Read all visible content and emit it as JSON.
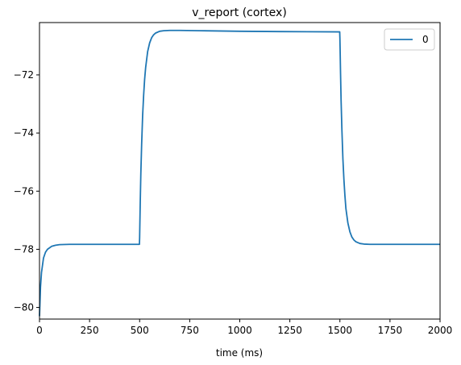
{
  "chart_data": {
    "type": "line",
    "title": "v_report (cortex)",
    "xlabel": "time (ms)",
    "ylabel": "",
    "xlim": [
      0,
      2000
    ],
    "ylim": [
      -80.4,
      -70.2
    ],
    "xticks": [
      0,
      250,
      500,
      750,
      1000,
      1250,
      1500,
      1750,
      2000
    ],
    "yticks": [
      -80,
      -78,
      -76,
      -74,
      -72
    ],
    "grid": false,
    "legend": "top-right",
    "series": [
      {
        "name": "0",
        "color": "#1f77b4",
        "x": [
          0,
          5,
          10,
          20,
          30,
          40,
          50,
          60,
          80,
          100,
          150,
          200,
          300,
          400,
          499,
          500,
          501,
          503,
          506,
          510,
          515,
          520,
          525,
          530,
          540,
          550,
          560,
          570,
          580,
          600,
          620,
          650,
          700,
          800,
          1000,
          1200,
          1499,
          1500,
          1501,
          1503,
          1506,
          1510,
          1515,
          1520,
          1525,
          1530,
          1540,
          1550,
          1560,
          1570,
          1580,
          1600,
          1620,
          1650,
          1700,
          1800,
          2000
        ],
        "y": [
          -80.3,
          -79.3,
          -78.8,
          -78.3,
          -78.1,
          -78.0,
          -77.95,
          -77.9,
          -77.86,
          -77.84,
          -77.83,
          -77.83,
          -77.83,
          -77.83,
          -77.83,
          -77.6,
          -77.2,
          -76.4,
          -75.4,
          -74.4,
          -73.4,
          -72.7,
          -72.15,
          -71.75,
          -71.2,
          -70.9,
          -70.72,
          -70.62,
          -70.56,
          -70.5,
          -70.48,
          -70.47,
          -70.47,
          -70.48,
          -70.5,
          -70.51,
          -70.52,
          -70.75,
          -71.1,
          -71.9,
          -72.9,
          -73.9,
          -74.9,
          -75.6,
          -76.15,
          -76.6,
          -77.1,
          -77.4,
          -77.58,
          -77.68,
          -77.74,
          -77.8,
          -77.82,
          -77.83,
          -77.83,
          -77.83,
          -77.83
        ]
      }
    ]
  }
}
